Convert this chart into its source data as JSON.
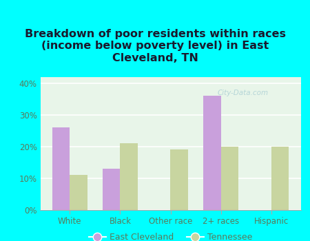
{
  "title": "Breakdown of poor residents within races\n(income below poverty level) in East\nCleveland, TN",
  "categories": [
    "White",
    "Black",
    "Other race",
    "2+ races",
    "Hispanic"
  ],
  "east_cleveland": [
    26,
    13,
    0,
    36,
    0
  ],
  "tennessee": [
    11,
    21,
    19,
    20,
    20
  ],
  "ec_color": "#c9a0dc",
  "tn_color": "#c8d5a0",
  "background_color": "#00ffff",
  "plot_bg_top": "#f0f8f0",
  "plot_bg_bottom": "#e8f5e9",
  "ylim": [
    0,
    42
  ],
  "yticks": [
    0,
    10,
    20,
    30,
    40
  ],
  "ytick_labels": [
    "0%",
    "10%",
    "20%",
    "30%",
    "40%"
  ],
  "bar_width": 0.35,
  "legend_labels": [
    "East Cleveland",
    "Tennessee"
  ],
  "watermark": "City-Data.com",
  "title_fontsize": 11.5,
  "tick_fontsize": 8.5,
  "legend_fontsize": 9,
  "axis_label_color": "#5a7a5a",
  "title_color": "#1a1a2e"
}
